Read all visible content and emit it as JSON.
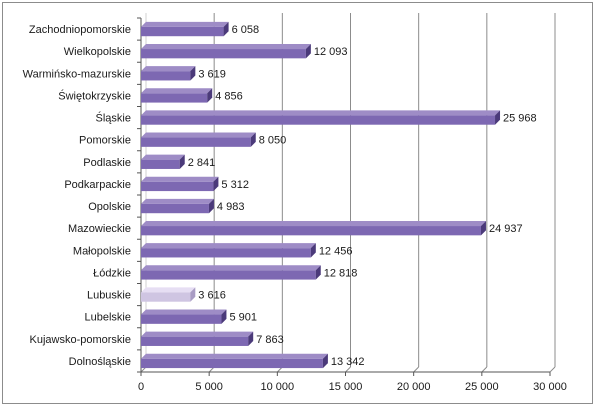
{
  "chart_data": {
    "type": "bar",
    "orientation": "horizontal",
    "categories": [
      "Zachodniopomorskie",
      "Wielkopolskie",
      "Warmińsko-mazurskie",
      "Świętokrzyskie",
      "Śląskie",
      "Pomorskie",
      "Podlaskie",
      "Podkarpackie",
      "Opolskie",
      "Mazowieckie",
      "Małopolskie",
      "Łódzkie",
      "Lubuskie",
      "Lubelskie",
      "Kujawsko-pomorskie",
      "Dolnośląskie"
    ],
    "values": [
      6058,
      12093,
      3619,
      4856,
      25968,
      8050,
      2841,
      5312,
      4983,
      24937,
      12456,
      12818,
      3616,
      5901,
      7863,
      13342
    ],
    "value_labels": [
      "6 058",
      "12 093",
      "3 619",
      "4 856",
      "25 968",
      "8 050",
      "2 841",
      "5 312",
      "4 983",
      "24 937",
      "12 456",
      "12 818",
      "3 616",
      "5 901",
      "7 863",
      "13 342"
    ],
    "highlighted_category": "Lubuskie",
    "xlim": [
      0,
      30000
    ],
    "xticks": [
      0,
      5000,
      10000,
      15000,
      20000,
      25000,
      30000
    ],
    "xtick_labels": [
      "0",
      "5 000",
      "10 000",
      "15 000",
      "20 000",
      "25 000",
      "30 000"
    ],
    "title": "",
    "xlabel": "",
    "ylabel": "",
    "grid": "vertical",
    "legend": "none",
    "colors": {
      "bar_top": "#9e8cc6",
      "bar_front": "#7d68b2",
      "bar_side": "#4b3a7a",
      "highlight_top": "#e6def3",
      "highlight_front": "#cfc5e2",
      "highlight_side": "#a99cc4",
      "gridline": "#8c8c8c",
      "wall": "#d0d0d0"
    }
  }
}
